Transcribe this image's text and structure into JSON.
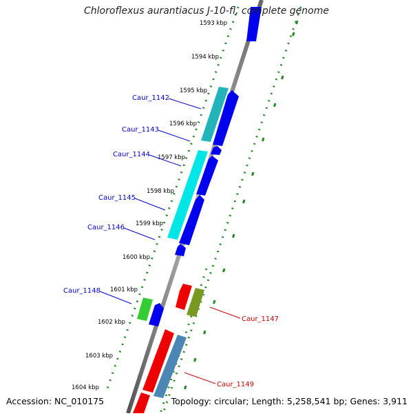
{
  "title": "Chloroflexus aurantiacus J-10-fl, complete genome",
  "accession": "Accession: NC_010175",
  "summary": "Topology: circular; Length: 5,258,541 bp; Genes: 3,911",
  "scale_ticks": [
    "1593 kbp",
    "1594 kbp",
    "1595 kbp",
    "1596 kbp",
    "1597 kbp",
    "1598 kbp",
    "1599 kbp",
    "1600 kbp",
    "1601 kbp",
    "1602 kbp",
    "1603 kbp",
    "1604 kbp"
  ],
  "gene_labels": {
    "left": [
      "Caur_1142",
      "Caur_1143",
      "Caur_1144",
      "Caur_1145",
      "Caur_1146",
      "Caur_1148"
    ],
    "right": [
      "Caur_1147",
      "Caur_1149"
    ]
  },
  "colors": {
    "blue": "#0000ee",
    "cyan": "#00e5e5",
    "teal": "#22b3bb",
    "green": "#33cc33",
    "red": "#ee0000",
    "olive": "#779922",
    "steel": "#4b86b4",
    "label_blue": "#0000cc",
    "label_red": "#cc0000",
    "dots": "#228822",
    "backbone": "#888888"
  }
}
